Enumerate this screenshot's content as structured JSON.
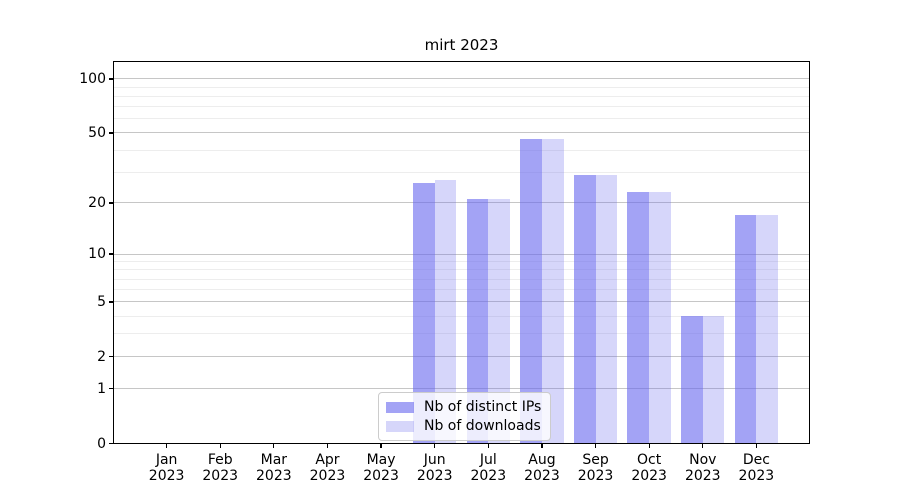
{
  "chart_data": {
    "type": "bar",
    "title": "mirt 2023",
    "categories": [
      "Jan 2023",
      "Feb 2023",
      "Mar 2023",
      "Apr 2023",
      "May 2023",
      "Jun 2023",
      "Jul 2023",
      "Aug 2023",
      "Sep 2023",
      "Oct 2023",
      "Nov 2023",
      "Dec 2023"
    ],
    "x_tick_month_labels": [
      "Jan",
      "Feb",
      "Mar",
      "Apr",
      "May",
      "Jun",
      "Jul",
      "Aug",
      "Sep",
      "Oct",
      "Nov",
      "Dec"
    ],
    "x_tick_year_label": "2023",
    "series": [
      {
        "name": "Nb of distinct IPs",
        "color": "rgba(102,102,238,0.6)",
        "values": [
          0,
          0,
          0,
          0,
          0,
          26,
          21,
          46,
          29,
          23,
          4,
          17
        ]
      },
      {
        "name": "Nb of downloads",
        "color": "rgba(102,102,238,0.27)",
        "values": [
          0,
          0,
          0,
          0,
          0,
          27,
          21,
          46,
          29,
          23,
          4,
          17
        ]
      }
    ],
    "y_axis": {
      "scale": "symlog",
      "major_ticks": [
        0,
        1,
        2,
        5,
        10,
        20,
        50,
        100
      ],
      "tick_labels": [
        "0",
        "1",
        "2",
        "5",
        "10",
        "20",
        "50",
        "100"
      ],
      "minor_ticks": [
        3,
        4,
        6,
        7,
        8,
        9,
        30,
        40,
        60,
        70,
        80,
        90
      ],
      "range": [
        0,
        126
      ]
    },
    "legend": {
      "position": "lower center"
    },
    "grid": true,
    "colors": {
      "major_grid": "#c6c6c6",
      "minor_grid": "#ededed",
      "axis": "#000000"
    }
  }
}
